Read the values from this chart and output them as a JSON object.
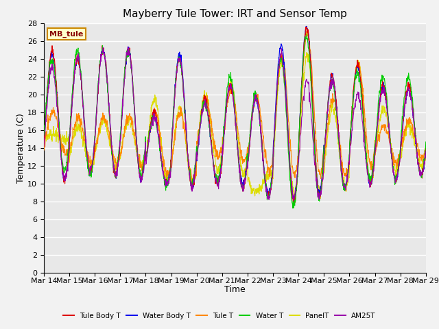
{
  "title": "Mayberry Tule Tower: IRT and Sensor Temp",
  "xlabel": "Time",
  "ylabel": "Temperature (C)",
  "ylim": [
    0,
    28
  ],
  "yticks": [
    0,
    2,
    4,
    6,
    8,
    10,
    12,
    14,
    16,
    18,
    20,
    22,
    24,
    26,
    28
  ],
  "xtick_labels": [
    "Mar 14",
    "Mar 15",
    "Mar 16",
    "Mar 17",
    "Mar 18",
    "Mar 19",
    "Mar 20",
    "Mar 21",
    "Mar 22",
    "Mar 23",
    "Mar 24",
    "Mar 25",
    "Mar 26",
    "Mar 27",
    "Mar 28",
    "Mar 29"
  ],
  "series_colors": {
    "Tule Body T": "#dd0000",
    "Water Body T": "#0000ee",
    "Tule T": "#ff8800",
    "Water T": "#00cc00",
    "PanelT": "#dddd00",
    "AM25T": "#9900aa"
  },
  "legend_labels": [
    "Tule Body T",
    "Water Body T",
    "Tule T",
    "Water T",
    "PanelT",
    "AM25T"
  ],
  "legend_colors": [
    "#dd0000",
    "#0000ee",
    "#ff8800",
    "#00cc00",
    "#dddd00",
    "#9900aa"
  ],
  "inset_label": "MB_tule",
  "inset_bg": "#ffffcc",
  "inset_border": "#cc8800",
  "fig_bg": "#f2f2f2",
  "plot_bg": "#e8e8e8",
  "grid_color": "#ffffff",
  "title_fontsize": 11,
  "axis_label_fontsize": 9,
  "tick_fontsize": 8,
  "night_lows_base": [
    10.5,
    11.0,
    11.0,
    10.5,
    10.0,
    9.5,
    10.0,
    9.5,
    8.5,
    8.0,
    8.5,
    9.5,
    10.0,
    10.5,
    11.0
  ],
  "day_highs_base": [
    25.0,
    24.0,
    25.0,
    25.0,
    18.0,
    24.0,
    19.5,
    21.0,
    20.0,
    24.0,
    27.5,
    22.0,
    23.5,
    21.0,
    21.0
  ],
  "night_lows_wb": [
    10.5,
    11.0,
    11.0,
    10.5,
    10.0,
    9.5,
    10.0,
    10.0,
    9.0,
    8.5,
    9.0,
    9.5,
    10.0,
    10.5,
    11.0
  ],
  "day_highs_wb": [
    24.5,
    24.0,
    25.0,
    25.0,
    17.5,
    24.5,
    19.0,
    21.0,
    19.5,
    25.5,
    27.5,
    22.0,
    23.0,
    21.0,
    20.5
  ],
  "night_lows_tt": [
    13.5,
    12.5,
    12.5,
    12.0,
    11.0,
    10.5,
    13.0,
    12.5,
    11.5,
    11.0,
    11.0,
    11.0,
    12.0,
    12.5,
    13.0
  ],
  "day_highs_tt": [
    18.0,
    17.5,
    17.5,
    17.5,
    18.0,
    18.0,
    19.5,
    20.5,
    19.5,
    24.5,
    27.0,
    19.5,
    23.5,
    16.5,
    17.0
  ],
  "night_lows_wt": [
    11.5,
    11.0,
    11.0,
    11.0,
    10.0,
    10.0,
    10.5,
    9.5,
    8.5,
    7.5,
    8.5,
    9.5,
    10.5,
    10.5,
    11.0
  ],
  "day_highs_wt": [
    24.0,
    25.0,
    25.0,
    25.0,
    17.5,
    24.0,
    19.0,
    22.0,
    20.0,
    24.0,
    26.5,
    21.5,
    22.5,
    22.0,
    22.0
  ],
  "night_lows_pt": [
    15.0,
    12.0,
    12.0,
    12.0,
    10.5,
    10.0,
    11.5,
    11.0,
    11.0,
    9.0,
    9.0,
    9.5,
    10.0,
    11.5,
    12.0
  ],
  "day_highs_pt": [
    15.5,
    16.5,
    17.0,
    17.0,
    19.5,
    18.5,
    20.0,
    21.5,
    9.0,
    23.5,
    24.5,
    18.5,
    23.5,
    18.5,
    16.5
  ],
  "night_lows_am": [
    10.5,
    11.5,
    11.0,
    10.5,
    10.0,
    9.5,
    10.0,
    9.5,
    8.5,
    8.5,
    8.5,
    9.5,
    10.0,
    10.5,
    11.0
  ],
  "day_highs_am": [
    23.0,
    24.0,
    25.0,
    25.0,
    17.5,
    24.0,
    19.0,
    21.0,
    19.5,
    24.5,
    21.5,
    21.5,
    20.0,
    20.5,
    20.5
  ]
}
